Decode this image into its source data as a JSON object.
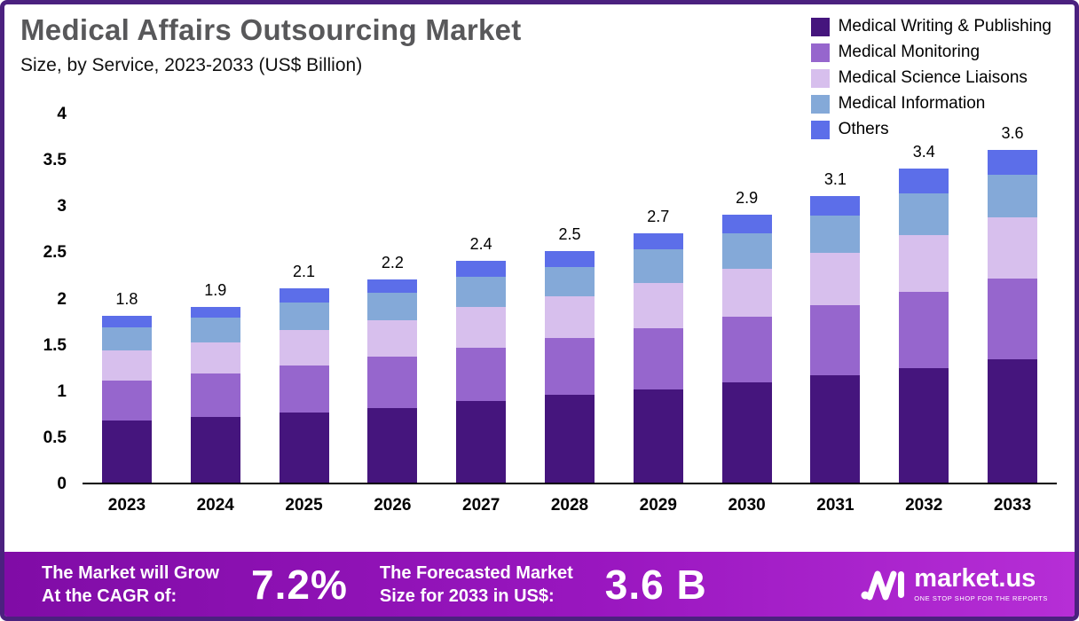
{
  "chart_data": {
    "type": "bar",
    "stacked": true,
    "title": "Medical Affairs Outsourcing Market",
    "subtitle": "Size, by Service, 2023-2033 (US$ Billion)",
    "unit": "US$ Billion",
    "grid": false,
    "legend_position": "top-right",
    "categories": [
      "2023",
      "2024",
      "2025",
      "2026",
      "2027",
      "2028",
      "2029",
      "2030",
      "2031",
      "2032",
      "2033"
    ],
    "series": [
      {
        "name": "Medical Writing & Publishing",
        "color": "#45157d",
        "values": [
          0.67,
          0.71,
          0.76,
          0.81,
          0.88,
          0.95,
          1.01,
          1.08,
          1.16,
          1.24,
          1.33
        ]
      },
      {
        "name": "Medical Monitoring",
        "color": "#9666cd",
        "values": [
          0.43,
          0.47,
          0.51,
          0.55,
          0.58,
          0.61,
          0.66,
          0.71,
          0.76,
          0.82,
          0.88
        ]
      },
      {
        "name": "Medical Science Liaisons",
        "color": "#d7bfed",
        "values": [
          0.33,
          0.34,
          0.38,
          0.4,
          0.44,
          0.45,
          0.49,
          0.52,
          0.56,
          0.62,
          0.66
        ]
      },
      {
        "name": "Medical Information",
        "color": "#84a9d8",
        "values": [
          0.25,
          0.26,
          0.3,
          0.29,
          0.33,
          0.32,
          0.36,
          0.39,
          0.41,
          0.45,
          0.46
        ]
      },
      {
        "name": "Others",
        "color": "#5c6ee9",
        "values": [
          0.12,
          0.12,
          0.15,
          0.15,
          0.17,
          0.17,
          0.18,
          0.2,
          0.21,
          0.27,
          0.27
        ]
      }
    ],
    "totals": [
      1.8,
      1.9,
      2.1,
      2.2,
      2.4,
      2.5,
      2.7,
      2.9,
      3.1,
      3.4,
      3.6
    ],
    "ylim": [
      0,
      4
    ],
    "yticks": [
      0,
      0.5,
      1,
      1.5,
      2,
      2.5,
      3,
      3.5,
      4
    ]
  },
  "banner": {
    "cagr_label_line1": "The Market will Grow",
    "cagr_label_line2": "At the CAGR of:",
    "cagr_value": "7.2%",
    "forecast_label_line1": "The Forecasted Market",
    "forecast_label_line2": "Size for 2033 in US$:",
    "forecast_value": "3.6 B",
    "brand_name": "market.us",
    "brand_tagline": "ONE STOP SHOP FOR THE REPORTS"
  },
  "colors": {
    "frame_border": "#4b217f",
    "title_color": "#58585a",
    "axis_line": "#000000",
    "banner_gradient_start": "#800ca6",
    "banner_gradient_mid": "#9916bf",
    "banner_gradient_end": "#b62ed6"
  }
}
